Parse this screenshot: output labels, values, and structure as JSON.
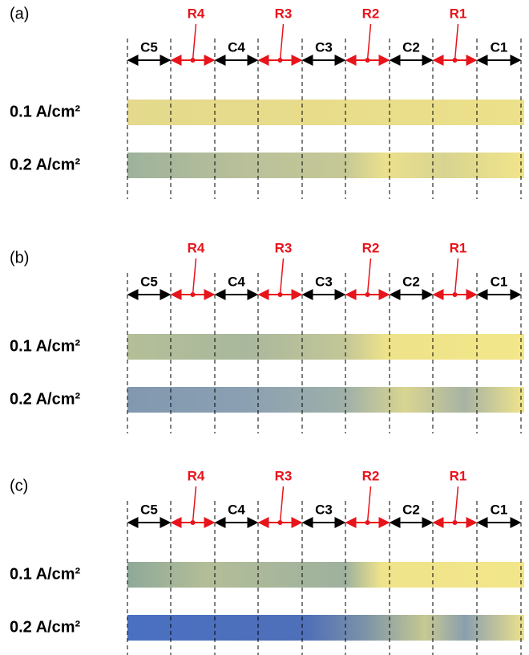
{
  "panels": [
    {
      "label": "(a)",
      "segments": [
        "C5",
        "R4",
        "C4",
        "R3",
        "C3",
        "R2",
        "C2",
        "R1",
        "C1"
      ],
      "rows": [
        "0.1 A/cm²",
        "0.2 A/cm²"
      ]
    },
    {
      "label": "(b)",
      "segments": [
        "C5",
        "R4",
        "C4",
        "R3",
        "C3",
        "R2",
        "C2",
        "R1",
        "C1"
      ],
      "rows": [
        "0.1 A/cm²",
        "0.2 A/cm²"
      ]
    },
    {
      "label": "(c)",
      "segments": [
        "C5",
        "R4",
        "C4",
        "R3",
        "C3",
        "R2",
        "C2",
        "R1",
        "C1"
      ],
      "rows": [
        "0.1 A/cm²",
        "0.2 A/cm²"
      ]
    }
  ]
}
